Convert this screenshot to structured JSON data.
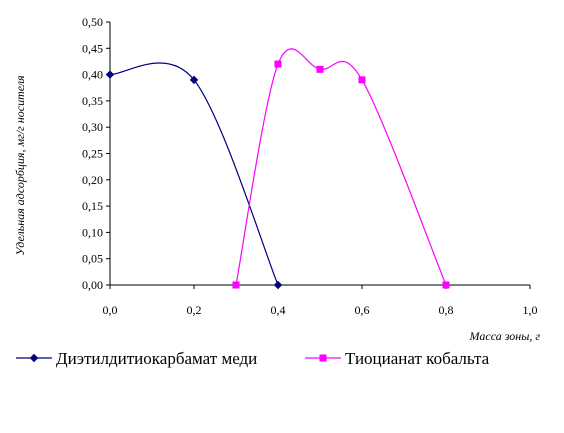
{
  "chart_data": {
    "type": "line",
    "title": "",
    "xlabel": "Масса зоны, г",
    "ylabel": "Удельная адсорбция, мг/г носителя",
    "xlim": [
      0,
      1.0
    ],
    "ylim": [
      0,
      0.5
    ],
    "x_ticks": [
      "0,0",
      "0,2",
      "0,4",
      "0,6",
      "0,8",
      "1,0"
    ],
    "y_ticks": [
      "0,00",
      "0,05",
      "0,10",
      "0,15",
      "0,20",
      "0,25",
      "0,30",
      "0,35",
      "0,40",
      "0,45",
      "0,50"
    ],
    "grid": false,
    "smooth": true,
    "legend_position": "bottom",
    "series": [
      {
        "name": "Диэтилдитиокарбамат меди",
        "color": "#000080",
        "marker": "diamond",
        "x": [
          0.0,
          0.2,
          0.4
        ],
        "y": [
          0.4,
          0.39,
          0.0
        ]
      },
      {
        "name": "Тиоцианат кобальта",
        "color": "#FF00FF",
        "marker": "square",
        "x": [
          0.3,
          0.4,
          0.5,
          0.6,
          0.8
        ],
        "y": [
          0.0,
          0.42,
          0.41,
          0.39,
          0.0
        ]
      }
    ]
  }
}
